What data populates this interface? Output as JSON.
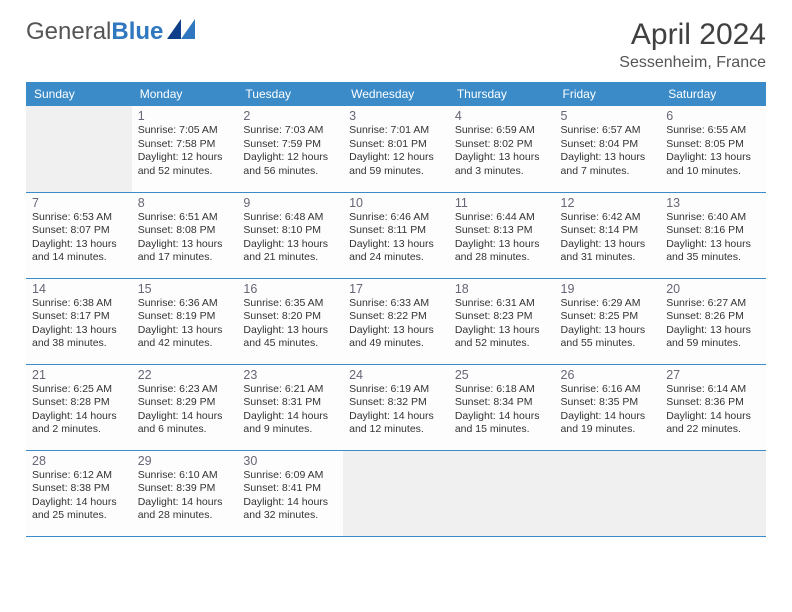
{
  "branding": {
    "word1": "General",
    "word2": "Blue",
    "color_general": "#555555",
    "color_blue": "#2f78bf"
  },
  "title": "April 2024",
  "location": "Sessenheim, France",
  "header_bg": "#3b8bc9",
  "header_fg": "#ffffff",
  "cell_border": "#3b8bc9",
  "empty_bg": "#f0f0f0",
  "weekdays": [
    "Sunday",
    "Monday",
    "Tuesday",
    "Wednesday",
    "Thursday",
    "Friday",
    "Saturday"
  ],
  "start_offset": 1,
  "days": [
    {
      "n": 1,
      "sunrise": "7:05 AM",
      "sunset": "7:58 PM",
      "daylight": "12 hours and 52 minutes."
    },
    {
      "n": 2,
      "sunrise": "7:03 AM",
      "sunset": "7:59 PM",
      "daylight": "12 hours and 56 minutes."
    },
    {
      "n": 3,
      "sunrise": "7:01 AM",
      "sunset": "8:01 PM",
      "daylight": "12 hours and 59 minutes."
    },
    {
      "n": 4,
      "sunrise": "6:59 AM",
      "sunset": "8:02 PM",
      "daylight": "13 hours and 3 minutes."
    },
    {
      "n": 5,
      "sunrise": "6:57 AM",
      "sunset": "8:04 PM",
      "daylight": "13 hours and 7 minutes."
    },
    {
      "n": 6,
      "sunrise": "6:55 AM",
      "sunset": "8:05 PM",
      "daylight": "13 hours and 10 minutes."
    },
    {
      "n": 7,
      "sunrise": "6:53 AM",
      "sunset": "8:07 PM",
      "daylight": "13 hours and 14 minutes."
    },
    {
      "n": 8,
      "sunrise": "6:51 AM",
      "sunset": "8:08 PM",
      "daylight": "13 hours and 17 minutes."
    },
    {
      "n": 9,
      "sunrise": "6:48 AM",
      "sunset": "8:10 PM",
      "daylight": "13 hours and 21 minutes."
    },
    {
      "n": 10,
      "sunrise": "6:46 AM",
      "sunset": "8:11 PM",
      "daylight": "13 hours and 24 minutes."
    },
    {
      "n": 11,
      "sunrise": "6:44 AM",
      "sunset": "8:13 PM",
      "daylight": "13 hours and 28 minutes."
    },
    {
      "n": 12,
      "sunrise": "6:42 AM",
      "sunset": "8:14 PM",
      "daylight": "13 hours and 31 minutes."
    },
    {
      "n": 13,
      "sunrise": "6:40 AM",
      "sunset": "8:16 PM",
      "daylight": "13 hours and 35 minutes."
    },
    {
      "n": 14,
      "sunrise": "6:38 AM",
      "sunset": "8:17 PM",
      "daylight": "13 hours and 38 minutes."
    },
    {
      "n": 15,
      "sunrise": "6:36 AM",
      "sunset": "8:19 PM",
      "daylight": "13 hours and 42 minutes."
    },
    {
      "n": 16,
      "sunrise": "6:35 AM",
      "sunset": "8:20 PM",
      "daylight": "13 hours and 45 minutes."
    },
    {
      "n": 17,
      "sunrise": "6:33 AM",
      "sunset": "8:22 PM",
      "daylight": "13 hours and 49 minutes."
    },
    {
      "n": 18,
      "sunrise": "6:31 AM",
      "sunset": "8:23 PM",
      "daylight": "13 hours and 52 minutes."
    },
    {
      "n": 19,
      "sunrise": "6:29 AM",
      "sunset": "8:25 PM",
      "daylight": "13 hours and 55 minutes."
    },
    {
      "n": 20,
      "sunrise": "6:27 AM",
      "sunset": "8:26 PM",
      "daylight": "13 hours and 59 minutes."
    },
    {
      "n": 21,
      "sunrise": "6:25 AM",
      "sunset": "8:28 PM",
      "daylight": "14 hours and 2 minutes."
    },
    {
      "n": 22,
      "sunrise": "6:23 AM",
      "sunset": "8:29 PM",
      "daylight": "14 hours and 6 minutes."
    },
    {
      "n": 23,
      "sunrise": "6:21 AM",
      "sunset": "8:31 PM",
      "daylight": "14 hours and 9 minutes."
    },
    {
      "n": 24,
      "sunrise": "6:19 AM",
      "sunset": "8:32 PM",
      "daylight": "14 hours and 12 minutes."
    },
    {
      "n": 25,
      "sunrise": "6:18 AM",
      "sunset": "8:34 PM",
      "daylight": "14 hours and 15 minutes."
    },
    {
      "n": 26,
      "sunrise": "6:16 AM",
      "sunset": "8:35 PM",
      "daylight": "14 hours and 19 minutes."
    },
    {
      "n": 27,
      "sunrise": "6:14 AM",
      "sunset": "8:36 PM",
      "daylight": "14 hours and 22 minutes."
    },
    {
      "n": 28,
      "sunrise": "6:12 AM",
      "sunset": "8:38 PM",
      "daylight": "14 hours and 25 minutes."
    },
    {
      "n": 29,
      "sunrise": "6:10 AM",
      "sunset": "8:39 PM",
      "daylight": "14 hours and 28 minutes."
    },
    {
      "n": 30,
      "sunrise": "6:09 AM",
      "sunset": "8:41 PM",
      "daylight": "14 hours and 32 minutes."
    }
  ],
  "labels": {
    "sunrise": "Sunrise:",
    "sunset": "Sunset:",
    "daylight": "Daylight:"
  }
}
